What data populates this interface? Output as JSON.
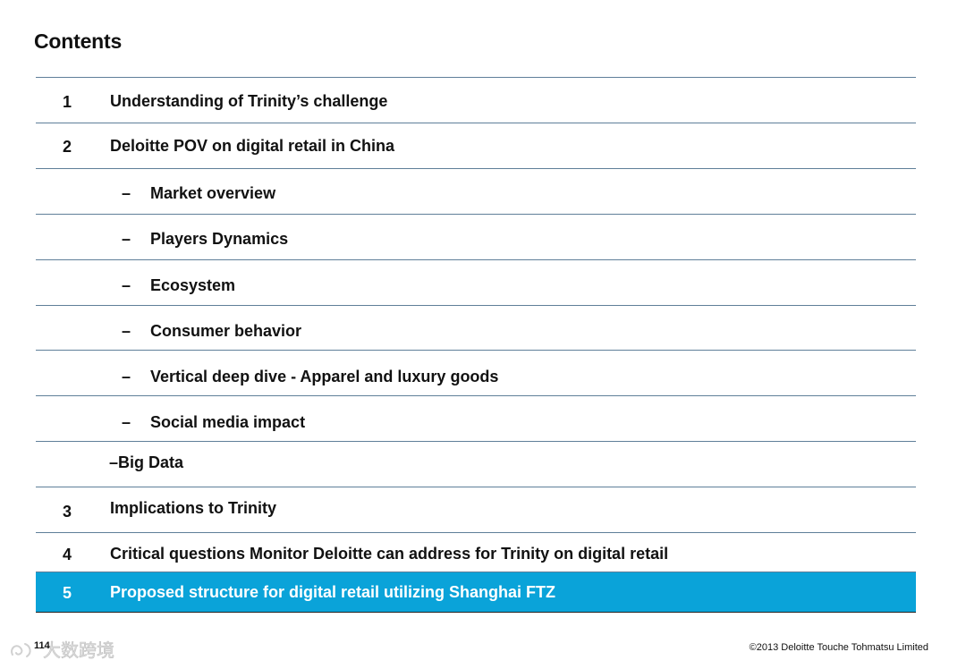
{
  "title": "Contents",
  "rows": [
    {
      "number": "1",
      "label": "Understanding of Trinity’s challenge"
    },
    {
      "number": "2",
      "label": "Deloitte POV on digital retail in China"
    },
    {
      "dash": "–",
      "label": "Market overview"
    },
    {
      "dash": "–",
      "label": "Players Dynamics"
    },
    {
      "dash": "–",
      "label": "Ecosystem"
    },
    {
      "dash": "–",
      "label": "Consumer behavior"
    },
    {
      "dash": "–",
      "label": "Vertical deep dive - Apparel and luxury goods"
    },
    {
      "dash": "–",
      "label": "Social media impact"
    },
    {
      "label": "–Big Data"
    },
    {
      "number": "3",
      "label": "Implications to Trinity"
    },
    {
      "number": "4",
      "label": "Critical questions Monitor Deloitte can address for Trinity on digital retail"
    },
    {
      "number": "5",
      "label": "Proposed structure for digital retail utilizing Shanghai FTZ"
    }
  ],
  "footer": {
    "page_number": "114",
    "copyright": "©2013 Deloitte Touche Tohmatsu Limited",
    "watermark_text": "大数跨境"
  },
  "colors": {
    "highlight": "#0aa3d9",
    "rule": "#5f7f99"
  }
}
